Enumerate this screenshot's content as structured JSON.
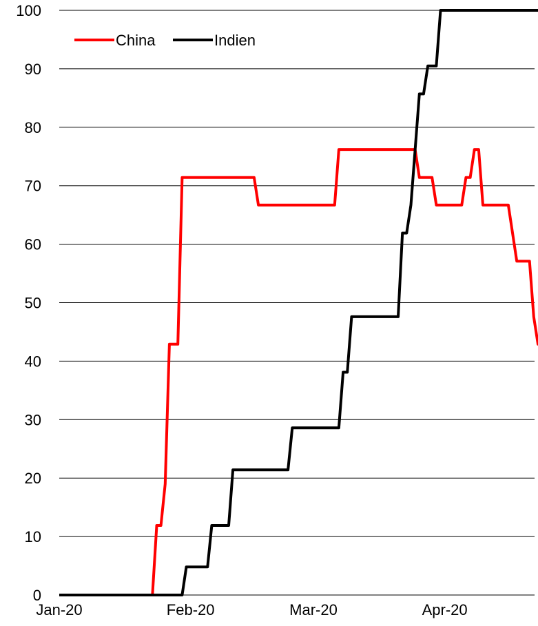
{
  "chart_data": {
    "type": "line",
    "title": "",
    "xlabel": "",
    "ylabel": "",
    "xlim": [
      "2020-01-01",
      "2020-04-22"
    ],
    "ylim": [
      0,
      100
    ],
    "yticks": [
      0,
      10,
      20,
      30,
      40,
      50,
      60,
      70,
      80,
      90,
      100
    ],
    "xticks": [
      {
        "label": "Jan-20",
        "date": "2020-01-01"
      },
      {
        "label": "Feb-20",
        "date": "2020-02-01"
      },
      {
        "label": "Mar-20",
        "date": "2020-03-01"
      },
      {
        "label": "Apr-20",
        "date": "2020-04-01"
      }
    ],
    "grid": {
      "horizontal": true,
      "vertical": false
    },
    "legend_position": "top-left",
    "series": [
      {
        "name": "China",
        "color": "#ff0000",
        "points": [
          [
            "2020-01-01",
            0
          ],
          [
            "2020-01-23",
            0
          ],
          [
            "2020-01-24",
            11.9
          ],
          [
            "2020-01-25",
            11.9
          ],
          [
            "2020-01-26",
            19
          ],
          [
            "2020-01-27",
            42.9
          ],
          [
            "2020-01-29",
            42.9
          ],
          [
            "2020-01-30",
            71.4
          ],
          [
            "2020-02-16",
            71.4
          ],
          [
            "2020-02-17",
            66.7
          ],
          [
            "2020-03-06",
            66.7
          ],
          [
            "2020-03-07",
            76.2
          ],
          [
            "2020-03-25",
            76.2
          ],
          [
            "2020-03-26",
            71.4
          ],
          [
            "2020-03-29",
            71.4
          ],
          [
            "2020-03-30",
            66.7
          ],
          [
            "2020-04-05",
            66.7
          ],
          [
            "2020-04-06",
            71.4
          ],
          [
            "2020-04-07",
            71.4
          ],
          [
            "2020-04-08",
            76.2
          ],
          [
            "2020-04-09",
            76.2
          ],
          [
            "2020-04-10",
            66.7
          ],
          [
            "2020-04-16",
            66.7
          ],
          [
            "2020-04-18",
            57.1
          ],
          [
            "2020-04-21",
            57.1
          ],
          [
            "2020-04-22",
            47.6
          ],
          [
            "2020-04-23",
            42.9
          ],
          [
            "2020-04-28",
            42.9
          ]
        ]
      },
      {
        "name": "Indien",
        "color": "#000000",
        "points": [
          [
            "2020-01-01",
            0
          ],
          [
            "2020-01-30",
            0
          ],
          [
            "2020-01-31",
            4.8
          ],
          [
            "2020-02-05",
            4.8
          ],
          [
            "2020-02-06",
            11.9
          ],
          [
            "2020-02-10",
            11.9
          ],
          [
            "2020-02-11",
            21.4
          ],
          [
            "2020-02-24",
            21.4
          ],
          [
            "2020-02-25",
            28.6
          ],
          [
            "2020-03-07",
            28.6
          ],
          [
            "2020-03-08",
            38.1
          ],
          [
            "2020-03-09",
            38.1
          ],
          [
            "2020-03-10",
            47.6
          ],
          [
            "2020-03-21",
            47.6
          ],
          [
            "2020-03-22",
            61.9
          ],
          [
            "2020-03-23",
            61.9
          ],
          [
            "2020-03-24",
            66.7
          ],
          [
            "2020-03-26",
            85.7
          ],
          [
            "2020-03-27",
            85.7
          ],
          [
            "2020-03-28",
            90.5
          ],
          [
            "2020-03-30",
            90.5
          ],
          [
            "2020-03-31",
            100
          ],
          [
            "2020-04-28",
            100
          ]
        ]
      }
    ]
  }
}
